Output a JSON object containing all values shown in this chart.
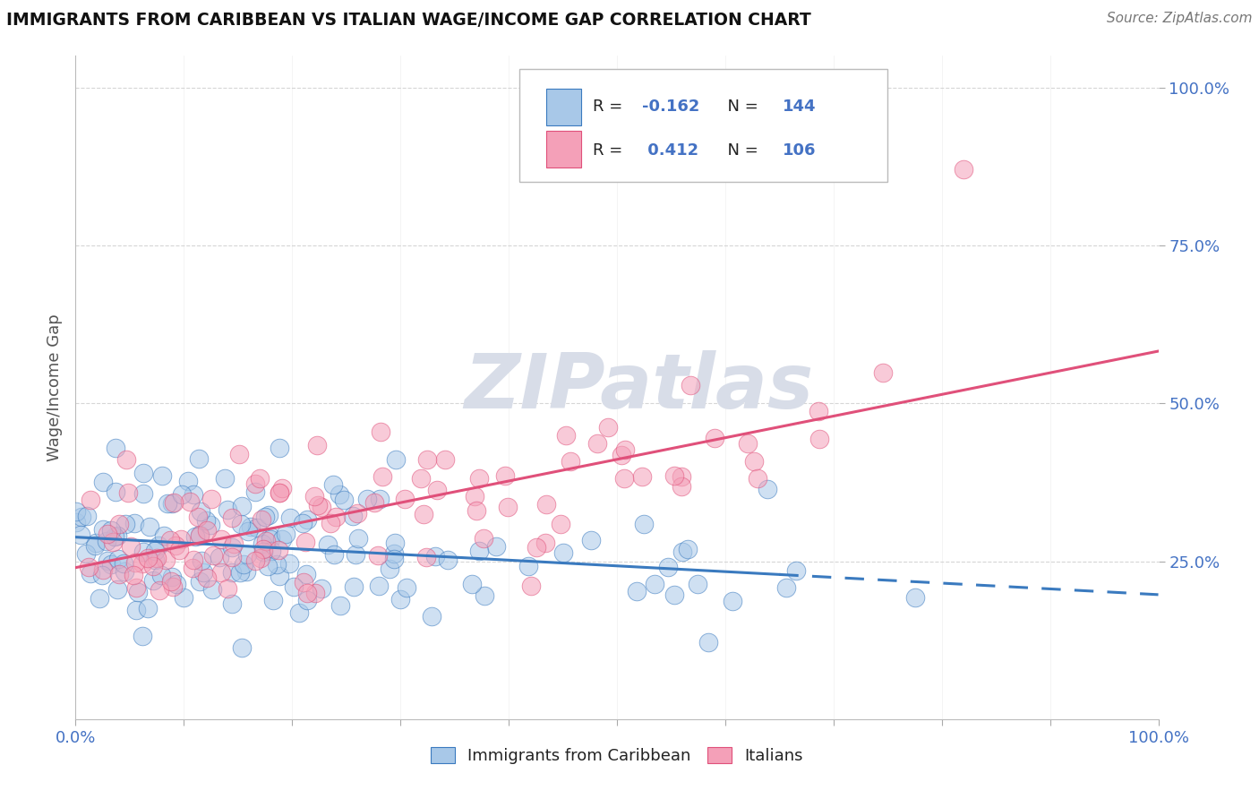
{
  "title": "IMMIGRANTS FROM CARIBBEAN VS ITALIAN WAGE/INCOME GAP CORRELATION CHART",
  "source": "Source: ZipAtlas.com",
  "ylabel": "Wage/Income Gap",
  "color_blue": "#a8c8e8",
  "color_pink": "#f4a0b8",
  "line_color_blue": "#3a7abf",
  "line_color_pink": "#e0507a",
  "background_color": "#ffffff",
  "watermark_color": "#d8dde8",
  "R_carib": -0.162,
  "N_carib": 144,
  "R_italian": 0.412,
  "N_italian": 106,
  "seed_carib": 77,
  "seed_italian": 99
}
